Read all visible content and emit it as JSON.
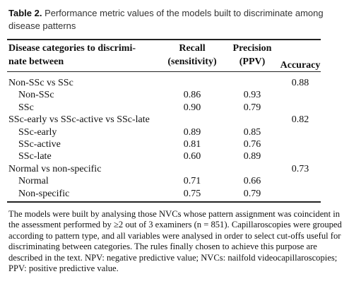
{
  "caption": {
    "label": "Table 2.",
    "text": "Performance metric values of the models built to discriminate among disease patterns"
  },
  "table": {
    "columns": [
      [
        "Disease categories to discrimi-",
        "nate between"
      ],
      [
        "Recall",
        "(sensitivity)"
      ],
      [
        "Precision",
        "(PPV)"
      ],
      [
        "Accuracy"
      ]
    ],
    "groups": [
      {
        "label": "Non-SSc vs SSc",
        "accuracy": "0.88",
        "rows": [
          [
            "Non-SSc",
            "0.86",
            "0.93"
          ],
          [
            "SSc",
            "0.90",
            "0.79"
          ]
        ]
      },
      {
        "label": "SSc-early vs SSc-active vs SSc-late",
        "accuracy": "0.82",
        "rows": [
          [
            "SSc-early",
            "0.89",
            "0.85"
          ],
          [
            "SSc-active",
            "0.81",
            "0.76"
          ],
          [
            "SSc-late",
            "0.60",
            "0.89"
          ]
        ]
      },
      {
        "label": "Normal vs non-specific",
        "accuracy": "0.73",
        "rows": [
          [
            "Normal",
            "0.71",
            "0.66"
          ],
          [
            "Non-specific",
            "0.75",
            "0.79"
          ]
        ]
      }
    ]
  },
  "footnote": "The models were built by analysing those NVCs whose pattern assignment was coincident in the assessment performed by ≥2 out of 3 examiners (n = 851). Capillaroscopies were grouped according to pattern type, and all variables were analysed in order to select cut-offs useful for discriminating between categories. The rules finally chosen to achieve this purpose are described in the text. NPV: negative predictive value; NVCs: nailfold videocapillaroscopies; PPV: positive predictive value."
}
